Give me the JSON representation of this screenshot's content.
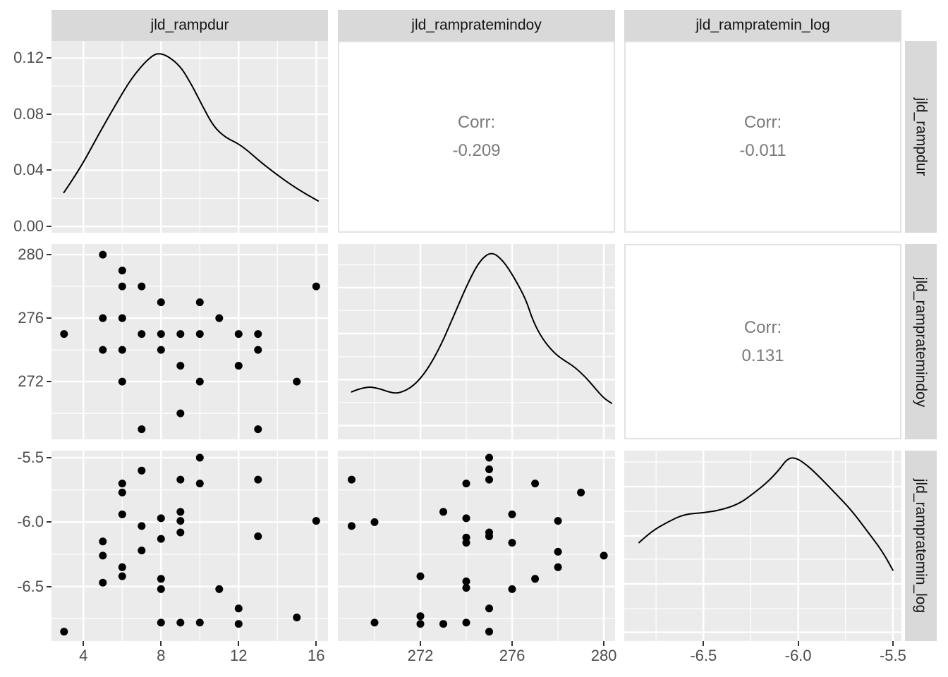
{
  "plot": {
    "top_strips": [
      "jld_rampdur",
      "jld_rampratemindoy",
      "jld_rampratemin_log"
    ],
    "right_strips": [
      "jld_rampdur",
      "jld_rampratemindoy",
      "jld_rampratemin_log"
    ],
    "colors": {
      "panel_background": "#EBEBEB",
      "strip_background": "#D9D9D9",
      "grid_line": "#FFFFFF",
      "point": "#000000",
      "density_line": "#000000",
      "axis_text": "#4D4D4D",
      "strip_text": "#141414",
      "corr_text": "#7A7A7A",
      "corr_panel_border": "#E2E2E2",
      "page_background": "#FFFFFF"
    }
  },
  "axes": {
    "x": {
      "c1": {
        "domain": [
          2.353,
          16.607
        ],
        "major": [
          4,
          8,
          12,
          16
        ],
        "minor": [
          6,
          10,
          14
        ],
        "labels": [
          "4",
          "8",
          "12",
          "16"
        ]
      },
      "c2": {
        "domain": [
          268.4,
          280.49
        ],
        "major": [
          272,
          276,
          280
        ],
        "minor": [
          270,
          274,
          278
        ],
        "labels": [
          "272",
          "276",
          "280"
        ]
      },
      "c3": {
        "domain": [
          -6.918,
          -5.455
        ],
        "major": [
          -6.5,
          -6.0,
          -5.5
        ],
        "minor": [
          -6.75,
          -6.25,
          -5.75
        ],
        "labels": [
          "-6.5",
          "-6.0",
          "-5.5"
        ]
      }
    },
    "y": {
      "r1": {
        "domain": [
          -0.0045,
          0.1322
        ],
        "major": [
          0.0,
          0.04,
          0.08,
          0.12
        ],
        "minor": [
          0.02,
          0.06,
          0.1
        ],
        "labels": [
          "0.00",
          "0.04",
          "0.08",
          "0.12"
        ]
      },
      "r2": {
        "domain": [
          268.36,
          280.67
        ],
        "major": [
          272,
          276,
          280
        ],
        "minor": [
          270,
          274,
          278
        ],
        "labels": [
          "272",
          "276",
          "280"
        ]
      },
      "r3": {
        "domain": [
          -6.923,
          -5.445
        ],
        "major": [
          -6.5,
          -6.0,
          -5.5
        ],
        "minor": [
          -6.75,
          -6.25,
          -5.75
        ],
        "labels": [
          "-6.5",
          "-6.0",
          "-5.5"
        ]
      }
    }
  },
  "chart_data": [
    {
      "id": "r1c1",
      "row": "r1",
      "col": "c1",
      "type": "line",
      "subtype": "density",
      "variable": "jld_rampdur",
      "xlim": [
        2.353,
        16.607
      ],
      "ylim": [
        -0.0045,
        0.1322
      ],
      "ydomain": [
        -0.0045,
        0.1322
      ],
      "curve": [
        [
          2.99,
          0.0241
        ],
        [
          3.81,
          0.0407
        ],
        [
          4.79,
          0.0658
        ],
        [
          5.77,
          0.0894
        ],
        [
          6.5,
          0.106
        ],
        [
          7.33,
          0.1196
        ],
        [
          7.95,
          0.1246
        ],
        [
          8.9,
          0.1161
        ],
        [
          9.52,
          0.1025
        ],
        [
          10.13,
          0.0859
        ],
        [
          10.72,
          0.0709
        ],
        [
          11.33,
          0.0633
        ],
        [
          11.95,
          0.0593
        ],
        [
          12.53,
          0.0533
        ],
        [
          13.15,
          0.0457
        ],
        [
          13.99,
          0.0367
        ],
        [
          14.97,
          0.0271
        ],
        [
          16.1,
          0.0181
        ]
      ]
    },
    {
      "id": "r1c2",
      "row": "r1",
      "col": "c2",
      "type": "text",
      "x_variable": "jld_rampratemindoy",
      "y_variable": "jld_rampdur",
      "label": "Corr:",
      "value": "-0.209"
    },
    {
      "id": "r1c3",
      "row": "r1",
      "col": "c3",
      "type": "text",
      "x_variable": "jld_rampratemin_log",
      "y_variable": "jld_rampdur",
      "label": "Corr:",
      "value": "-0.011"
    },
    {
      "id": "r2c1",
      "row": "r2",
      "col": "c1",
      "type": "scatter",
      "x_variable": "jld_rampdur",
      "y_variable": "jld_rampratemindoy",
      "points": [
        [
          5,
          280
        ],
        [
          6,
          279
        ],
        [
          6,
          278
        ],
        [
          7,
          278
        ],
        [
          16,
          278
        ],
        [
          8,
          277
        ],
        [
          10,
          277
        ],
        [
          5,
          276
        ],
        [
          6,
          276
        ],
        [
          11,
          276
        ],
        [
          3,
          275
        ],
        [
          7,
          275
        ],
        [
          8,
          275
        ],
        [
          9,
          275
        ],
        [
          10,
          275
        ],
        [
          12,
          275
        ],
        [
          13,
          275
        ],
        [
          5,
          274
        ],
        [
          6,
          274
        ],
        [
          8,
          274
        ],
        [
          13,
          274
        ],
        [
          9,
          273
        ],
        [
          12,
          273
        ],
        [
          6,
          272
        ],
        [
          10,
          272
        ],
        [
          15,
          272
        ],
        [
          9,
          270
        ],
        [
          7,
          269
        ],
        [
          13,
          269
        ]
      ]
    },
    {
      "id": "r2c2",
      "row": "r2",
      "col": "c2",
      "type": "line",
      "subtype": "density",
      "variable": "jld_rampratemindoy",
      "xlim": [
        268.4,
        280.49
      ],
      "ydomain": [
        0,
        1
      ],
      "ygrid_major": [
        0.07,
        0.306,
        0.542,
        0.777
      ],
      "ygrid_minor": [
        0.188,
        0.423,
        0.66,
        0.893
      ],
      "curve": [
        [
          269.0,
          0.243
        ],
        [
          269.6,
          0.272
        ],
        [
          270.2,
          0.261
        ],
        [
          270.7,
          0.239
        ],
        [
          271.1,
          0.236
        ],
        [
          271.7,
          0.272
        ],
        [
          272.3,
          0.355
        ],
        [
          272.9,
          0.482
        ],
        [
          273.5,
          0.645
        ],
        [
          274.1,
          0.808
        ],
        [
          274.6,
          0.917
        ],
        [
          275.1,
          0.962
        ],
        [
          275.6,
          0.917
        ],
        [
          276.1,
          0.826
        ],
        [
          276.6,
          0.717
        ],
        [
          276.9,
          0.609
        ],
        [
          277.3,
          0.518
        ],
        [
          277.8,
          0.446
        ],
        [
          278.2,
          0.409
        ],
        [
          278.7,
          0.373
        ],
        [
          279.2,
          0.319
        ],
        [
          279.6,
          0.264
        ],
        [
          280.0,
          0.21
        ],
        [
          280.34,
          0.185
        ]
      ]
    },
    {
      "id": "r2c3",
      "row": "r2",
      "col": "c3",
      "type": "text",
      "x_variable": "jld_rampratemin_log",
      "y_variable": "jld_rampratemindoy",
      "label": "Corr:",
      "value": "0.131"
    },
    {
      "id": "r3c1",
      "row": "r3",
      "col": "c1",
      "type": "scatter",
      "x_variable": "jld_rampdur",
      "y_variable": "jld_rampratemin_log",
      "points": [
        [
          10,
          -5.5
        ],
        [
          7,
          -5.6
        ],
        [
          9,
          -5.67
        ],
        [
          13,
          -5.67
        ],
        [
          6,
          -5.7
        ],
        [
          10,
          -5.7
        ],
        [
          6,
          -5.77
        ],
        [
          9,
          -5.92
        ],
        [
          6,
          -5.94
        ],
        [
          8,
          -5.97
        ],
        [
          9,
          -5.99
        ],
        [
          16,
          -5.99
        ],
        [
          7,
          -6.03
        ],
        [
          9,
          -6.08
        ],
        [
          13,
          -6.11
        ],
        [
          8,
          -6.13
        ],
        [
          5,
          -6.15
        ],
        [
          7,
          -6.22
        ],
        [
          5,
          -6.26
        ],
        [
          6,
          -6.35
        ],
        [
          6,
          -6.42
        ],
        [
          8,
          -6.44
        ],
        [
          5,
          -6.47
        ],
        [
          8,
          -6.52
        ],
        [
          11,
          -6.52
        ],
        [
          12,
          -6.67
        ],
        [
          15,
          -6.74
        ],
        [
          8,
          -6.78
        ],
        [
          9,
          -6.78
        ],
        [
          10,
          -6.78
        ],
        [
          12,
          -6.79
        ],
        [
          3,
          -6.85
        ]
      ]
    },
    {
      "id": "r3c2",
      "row": "r3",
      "col": "c2",
      "type": "scatter",
      "x_variable": "jld_rampratemindoy",
      "y_variable": "jld_rampratemin_log",
      "points": [
        [
          275,
          -5.5
        ],
        [
          275,
          -5.59
        ],
        [
          269,
          -5.67
        ],
        [
          275,
          -5.67
        ],
        [
          274,
          -5.7
        ],
        [
          277,
          -5.7
        ],
        [
          279,
          -5.77
        ],
        [
          273,
          -5.92
        ],
        [
          276,
          -5.94
        ],
        [
          274,
          -5.97
        ],
        [
          278,
          -5.99
        ],
        [
          270,
          -6.0
        ],
        [
          269,
          -6.03
        ],
        [
          275,
          -6.08
        ],
        [
          275,
          -6.11
        ],
        [
          274,
          -6.12
        ],
        [
          274,
          -6.16
        ],
        [
          276,
          -6.16
        ],
        [
          278,
          -6.23
        ],
        [
          280,
          -6.26
        ],
        [
          278,
          -6.35
        ],
        [
          272,
          -6.42
        ],
        [
          277,
          -6.44
        ],
        [
          274,
          -6.46
        ],
        [
          274,
          -6.51
        ],
        [
          276,
          -6.52
        ],
        [
          275,
          -6.67
        ],
        [
          272,
          -6.73
        ],
        [
          270,
          -6.78
        ],
        [
          274,
          -6.78
        ],
        [
          272,
          -6.79
        ],
        [
          273,
          -6.79
        ],
        [
          275,
          -6.85
        ]
      ]
    },
    {
      "id": "r3c3",
      "row": "r3",
      "col": "c3",
      "type": "line",
      "subtype": "density",
      "variable": "jld_rampratemin_log",
      "xlim": [
        -6.918,
        -5.455
      ],
      "ydomain": [
        0,
        1
      ],
      "ygrid_major": [
        0.046,
        0.3,
        0.552,
        0.811
      ],
      "ygrid_minor": [
        0.169,
        0.43,
        0.681,
        0.941
      ],
      "curve": [
        [
          -6.84,
          0.517
        ],
        [
          -6.78,
          0.572
        ],
        [
          -6.69,
          0.625
        ],
        [
          -6.6,
          0.667
        ],
        [
          -6.5,
          0.673
        ],
        [
          -6.4,
          0.69
        ],
        [
          -6.31,
          0.722
        ],
        [
          -6.24,
          0.772
        ],
        [
          -6.16,
          0.836
        ],
        [
          -6.1,
          0.9
        ],
        [
          -6.06,
          0.955
        ],
        [
          -6.02,
          0.966
        ],
        [
          -5.96,
          0.93
        ],
        [
          -5.88,
          0.855
        ],
        [
          -5.8,
          0.772
        ],
        [
          -5.72,
          0.688
        ],
        [
          -5.64,
          0.583
        ],
        [
          -5.56,
          0.478
        ],
        [
          -5.5,
          0.372
        ]
      ]
    }
  ]
}
